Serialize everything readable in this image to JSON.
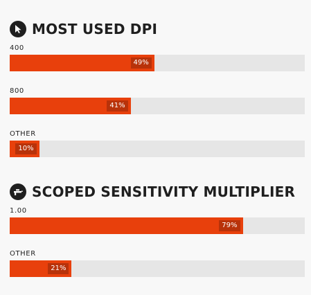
{
  "sections": [
    {
      "title": "MOST USED DPI",
      "icon": "mouse-pointer-icon",
      "stats": [
        {
          "label": "400",
          "value": "49%",
          "percent": 49
        },
        {
          "label": "800",
          "value": "41%",
          "percent": 41
        },
        {
          "label": "OTHER",
          "value": "10%",
          "percent": 10
        }
      ]
    },
    {
      "title": "SCOPED SENSITIVITY MULTIPLIER",
      "icon": "scope-rifle-icon",
      "stats": [
        {
          "label": "1.00",
          "value": "79%",
          "percent": 79
        },
        {
          "label": "OTHER",
          "value": "21%",
          "percent": 21
        }
      ]
    }
  ],
  "colors": {
    "background": "#f8f8f8",
    "bar_fill": "#e8400c",
    "bar_track": "#e6e6e6",
    "value_badge": "#b8320a",
    "text": "#1f1f1f"
  }
}
